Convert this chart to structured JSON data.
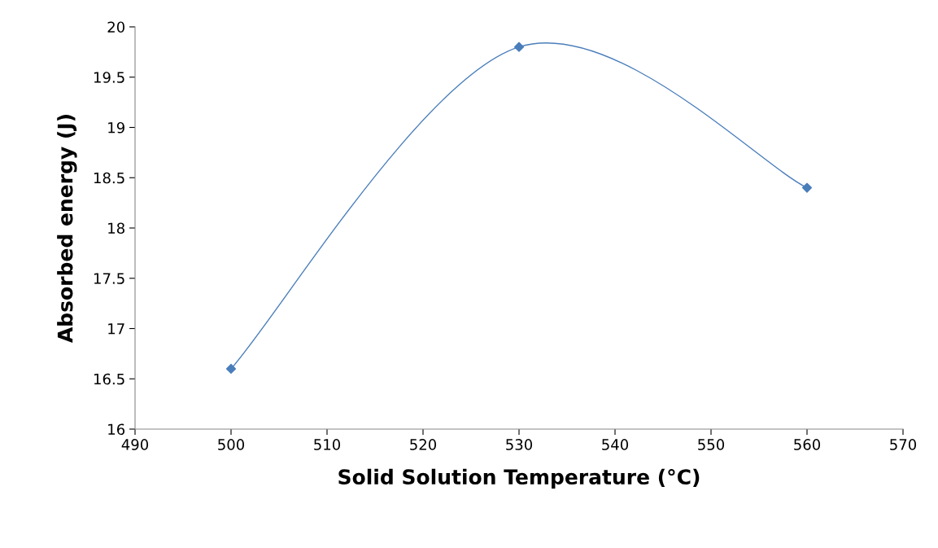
{
  "chart_data": {
    "type": "line",
    "xlabel": "Solid Solution Temperature (°C)",
    "ylabel": "Absorbed energy (J)",
    "x": [
      500,
      530,
      560
    ],
    "series": [
      {
        "color": "#4a7ebb",
        "values": [
          16.6,
          19.8,
          18.4
        ]
      }
    ],
    "xlim": [
      490,
      570
    ],
    "xticks": [
      490,
      500,
      510,
      520,
      530,
      540,
      550,
      560,
      570
    ],
    "ylim": [
      16,
      20
    ],
    "yticks": [
      16,
      16.5,
      17,
      17.5,
      18,
      18.5,
      19,
      19.5,
      20
    ],
    "grid": false,
    "legend": false,
    "marker": "diamond",
    "line_style": "solid"
  }
}
